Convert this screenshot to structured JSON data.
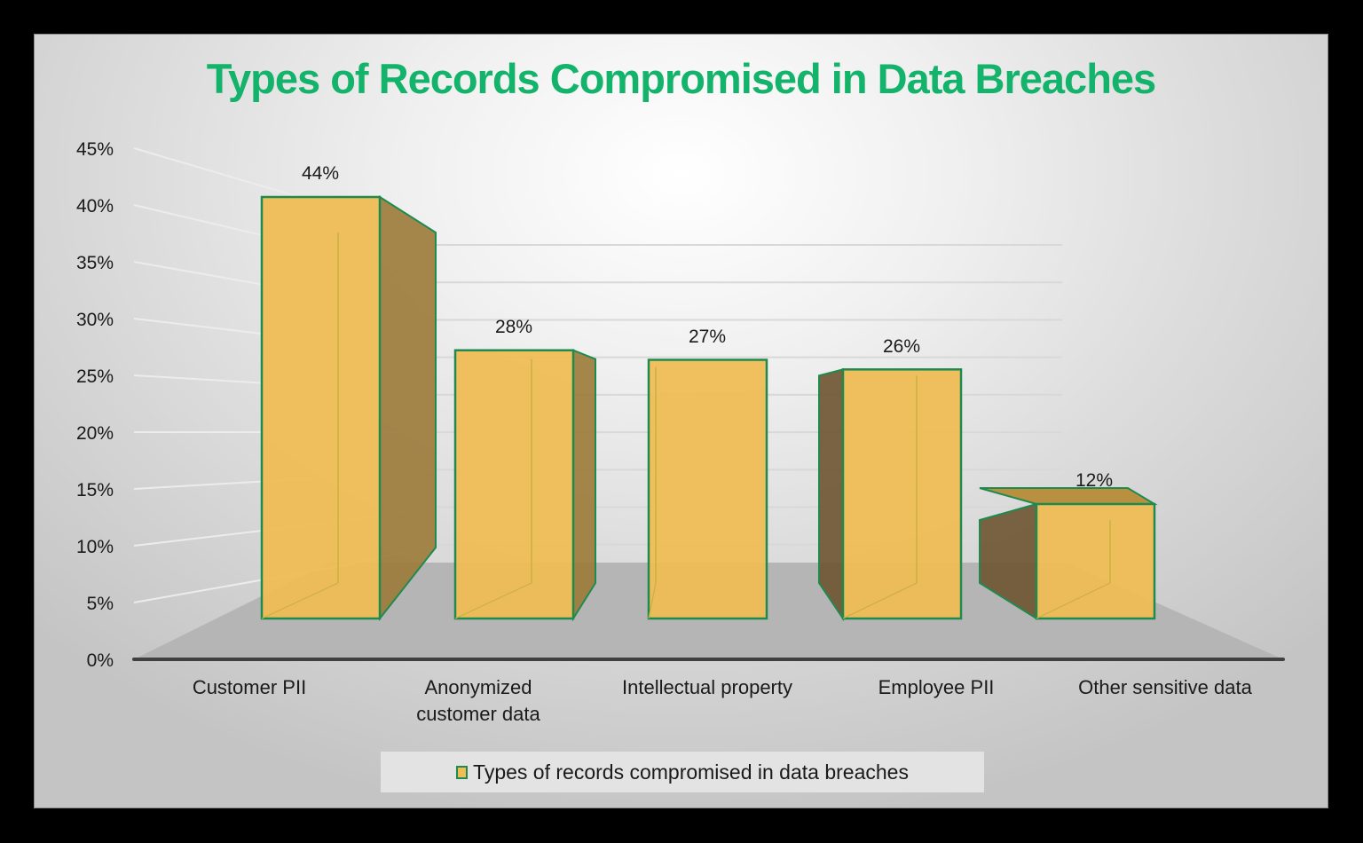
{
  "chart_data": {
    "type": "bar",
    "title": "Types of Records Compromised in Data Breaches",
    "categories": [
      "Customer PII",
      "Anonymized customer data",
      "Intellectual property",
      "Employee PII",
      "Other sensitive data"
    ],
    "category_lines": [
      [
        "Customer PII"
      ],
      [
        "Anonymized",
        "customer data"
      ],
      [
        "Intellectual property"
      ],
      [
        "Employee PII"
      ],
      [
        "Other sensitive data"
      ]
    ],
    "series": [
      {
        "name": "Types of records compromised in data breaches",
        "values": [
          44,
          28,
          27,
          26,
          12
        ]
      }
    ],
    "data_labels": [
      "44%",
      "28%",
      "27%",
      "26%",
      "12%"
    ],
    "xlabel": "",
    "ylabel": "",
    "ylim": [
      0,
      45
    ],
    "y_ticks": [
      "0%",
      "5%",
      "10%",
      "15%",
      "20%",
      "25%",
      "30%",
      "35%",
      "40%",
      "45%"
    ],
    "grid": true,
    "legend_position": "bottom",
    "style": "3d-column"
  },
  "colors": {
    "title": "#14b36b",
    "bar_front": "#f0bd55",
    "bar_edge": "#1e8a4f",
    "bar_side": "#8a6a2a",
    "floor": "#b5b5b5",
    "axis": "#404040"
  },
  "legend": {
    "label": "Types of records compromised in data breaches"
  }
}
